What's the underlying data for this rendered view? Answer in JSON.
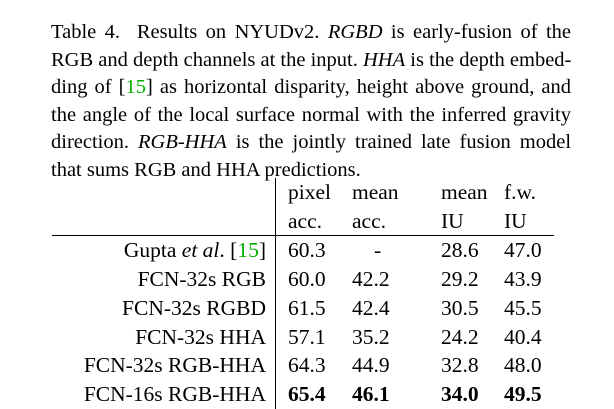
{
  "caption": {
    "label": "Table 4.",
    "intro": "Results on NYUDv2.",
    "rgbd_term": "RGBD",
    "rgbd_def": "is early-fusion of the",
    "line2": "RGB and depth channels at the input.",
    "hha_term": "HHA",
    "hha_def": "is the depth embed-",
    "line3_pre": "ding of [",
    "cite": "15",
    "line3_post": "] as horizontal disparity, height above ground, and",
    "line4": "the angle of the local surface normal with the inferred gravity",
    "line5_pre": "direction.",
    "rgbhha_term": "RGB-HHA",
    "rgbhha_def": "is the jointly trained late fusion model",
    "line6": "that sums RGB and HHA predictions."
  },
  "table": {
    "header_top": [
      "pixel",
      "mean",
      "mean",
      "f.w."
    ],
    "header_bottom": [
      "acc.",
      "acc.",
      "IU",
      "IU"
    ],
    "rows": [
      {
        "method_pre": "Gupta ",
        "method_ital": "et al",
        "method_post": ". [",
        "cite": "15",
        "method_end": "]",
        "values": [
          "60.3",
          "-",
          "28.6",
          "47.0"
        ]
      },
      {
        "method": "FCN-32s RGB",
        "values": [
          "60.0",
          "42.2",
          "29.2",
          "43.9"
        ]
      },
      {
        "method": "FCN-32s RGBD",
        "values": [
          "61.5",
          "42.4",
          "30.5",
          "45.5"
        ]
      },
      {
        "method": "FCN-32s HHA",
        "values": [
          "57.1",
          "35.2",
          "24.2",
          "40.4"
        ]
      },
      {
        "method": "FCN-32s RGB-HHA",
        "values": [
          "64.3",
          "44.9",
          "32.8",
          "48.0"
        ]
      },
      {
        "method": "FCN-16s RGB-HHA",
        "values": [
          "65.4",
          "46.1",
          "34.0",
          "49.5"
        ]
      }
    ]
  }
}
